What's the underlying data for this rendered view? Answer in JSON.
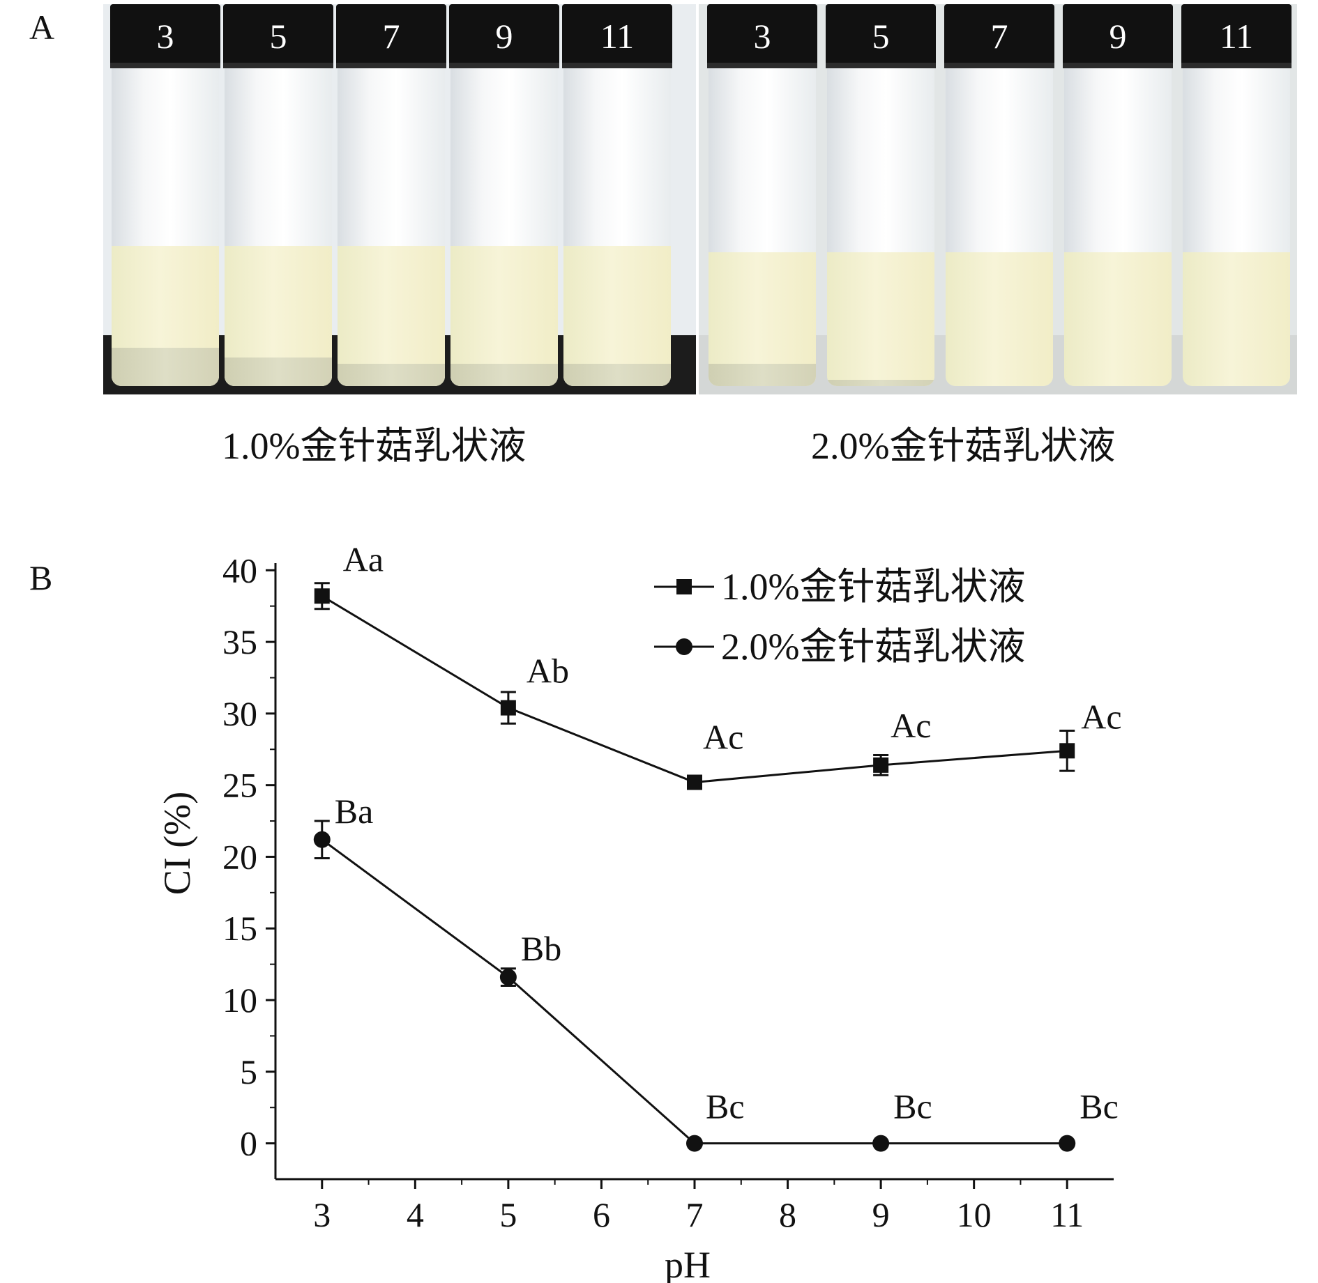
{
  "panels": {
    "a_label": "A",
    "b_label": "B"
  },
  "photos": [
    {
      "caption": "1.0%金针菇乳状液",
      "vials": [
        {
          "cap_label": "3",
          "emulsion_fill": 0.44,
          "serum_fill": 0.12
        },
        {
          "cap_label": "5",
          "emulsion_fill": 0.44,
          "serum_fill": 0.09
        },
        {
          "cap_label": "7",
          "emulsion_fill": 0.44,
          "serum_fill": 0.07
        },
        {
          "cap_label": "9",
          "emulsion_fill": 0.44,
          "serum_fill": 0.07
        },
        {
          "cap_label": "11",
          "emulsion_fill": 0.44,
          "serum_fill": 0.07
        }
      ]
    },
    {
      "caption": "2.0%金针菇乳状液",
      "vials": [
        {
          "cap_label": "3",
          "emulsion_fill": 0.42,
          "serum_fill": 0.07
        },
        {
          "cap_label": "5",
          "emulsion_fill": 0.42,
          "serum_fill": 0.02
        },
        {
          "cap_label": "7",
          "emulsion_fill": 0.42,
          "serum_fill": 0.0
        },
        {
          "cap_label": "9",
          "emulsion_fill": 0.42,
          "serum_fill": 0.0
        },
        {
          "cap_label": "11",
          "emulsion_fill": 0.42,
          "serum_fill": 0.0
        }
      ]
    }
  ],
  "chart_data": {
    "type": "line",
    "xlabel": "pH",
    "ylabel": "CI (%)",
    "xlim": [
      2.5,
      11.5
    ],
    "ylim": [
      -2.5,
      40.5
    ],
    "x_ticks": [
      3,
      4,
      5,
      6,
      7,
      8,
      9,
      10,
      11
    ],
    "y_ticks": [
      0,
      5,
      10,
      15,
      20,
      25,
      30,
      35,
      40
    ],
    "grid": false,
    "legend_position": "top-right",
    "series": [
      {
        "name": "1.0%金针菇乳状液",
        "marker": "square",
        "x": [
          3,
          5,
          7,
          9,
          11
        ],
        "y": [
          38.2,
          30.4,
          25.2,
          26.4,
          27.4
        ],
        "error": [
          0.9,
          1.1,
          0.3,
          0.7,
          1.4
        ],
        "labels": [
          "Aa",
          "Ab",
          "Ac",
          "Ac",
          "Ac"
        ]
      },
      {
        "name": "2.0%金针菇乳状液",
        "marker": "circle",
        "x": [
          3,
          5,
          7,
          9,
          11
        ],
        "y": [
          21.2,
          11.6,
          0.0,
          0.0,
          0.0
        ],
        "error": [
          1.3,
          0.6,
          0.0,
          0.0,
          0.0
        ],
        "labels": [
          "Ba",
          "Bb",
          "Bc",
          "Bc",
          "Bc"
        ]
      }
    ]
  }
}
